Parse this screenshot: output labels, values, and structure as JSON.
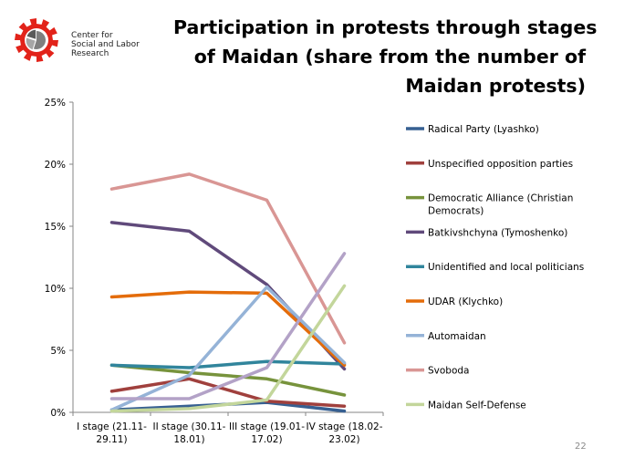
{
  "logo": {
    "lines": [
      "Center for",
      "Social and Labor",
      "Research"
    ],
    "gear_color": "#e2231a",
    "pie_color": "#7f7f7f"
  },
  "title_lines": [
    "Participation in protests through stages",
    "of Maidan (share from the number of",
    "Maidan protests)"
  ],
  "page_number": "22",
  "chart_data": {
    "type": "line",
    "title": "Participation in protests through stages of Maidan (share from the number of Maidan protests)",
    "categories": [
      [
        "I stage (21.11-",
        "29.11)"
      ],
      [
        "II stage (30.11-",
        "18.01)"
      ],
      [
        "III stage (19.01-",
        "17.02)"
      ],
      [
        "IV stage (18.02-",
        "23.02)"
      ]
    ],
    "ylim": [
      0,
      25
    ],
    "yticks": [
      "0%",
      "5%",
      "10%",
      "15%",
      "20%",
      "25%"
    ],
    "grid": false,
    "legend_position": "right",
    "series": [
      {
        "name": "Radical Party (Lyashko)",
        "color": "#376092",
        "values": [
          0.2,
          0.5,
          0.8,
          0.1
        ]
      },
      {
        "name": "Unspecified opposition parties",
        "color": "#a0403d",
        "values": [
          1.7,
          2.7,
          0.9,
          0.5
        ]
      },
      {
        "name": "Democratic Alliance (Christian Democrats)",
        "color": "#77933c",
        "values": [
          3.8,
          3.2,
          2.7,
          1.4
        ]
      },
      {
        "name": "Batkivshchyna (Tymoshenko)",
        "color": "#604a7b",
        "values": [
          15.3,
          14.6,
          10.3,
          3.5
        ]
      },
      {
        "name": "Unidentified and local politicians",
        "color": "#31859c",
        "values": [
          3.8,
          3.6,
          4.1,
          3.9
        ]
      },
      {
        "name": "UDAR (Klychko)",
        "color": "#e46c0a",
        "values": [
          9.3,
          9.7,
          9.6,
          3.8
        ]
      },
      {
        "name": "Automaidan",
        "color": "#95b3d7",
        "values": [
          0.2,
          3.0,
          10.1,
          4.0
        ]
      },
      {
        "name": "Svoboda",
        "color": "#d99694",
        "values": [
          18.0,
          19.2,
          17.1,
          5.6
        ]
      },
      {
        "name": "Maidan Self-Defense",
        "color": "#c3d69b",
        "values": [
          0.1,
          0.3,
          1.0,
          10.2
        ]
      },
      {
        "name": "",
        "color": "#b3a2c7",
        "values": [
          1.1,
          1.1,
          3.6,
          12.8
        ]
      }
    ]
  }
}
